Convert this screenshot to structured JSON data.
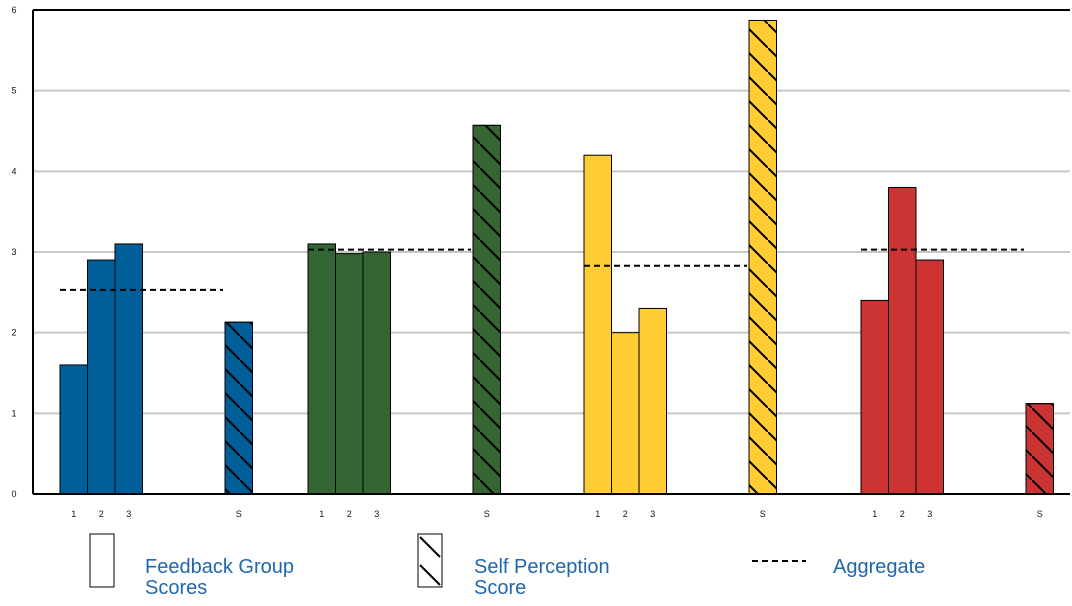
{
  "chart_data": {
    "type": "bar",
    "ylim": [
      0,
      6
    ],
    "yticks": [
      "0",
      "1",
      "2",
      "3",
      "4",
      "5",
      "6"
    ],
    "grid": true,
    "legend_position": "bottom",
    "groups": [
      {
        "color": "#005f99",
        "bars": [
          {
            "label": "1",
            "value": 1.6,
            "kind": "feedback"
          },
          {
            "label": "2",
            "value": 2.9,
            "kind": "feedback"
          },
          {
            "label": "3",
            "value": 3.1,
            "kind": "feedback"
          },
          {
            "label": "S",
            "value": 2.13,
            "kind": "self"
          }
        ],
        "aggregate": 2.53
      },
      {
        "color": "#336633",
        "bars": [
          {
            "label": "1",
            "value": 3.1,
            "kind": "feedback"
          },
          {
            "label": "2",
            "value": 2.98,
            "kind": "feedback"
          },
          {
            "label": "3",
            "value": 3.0,
            "kind": "feedback"
          },
          {
            "label": "S",
            "value": 4.57,
            "kind": "self"
          }
        ],
        "aggregate": 3.03
      },
      {
        "color": "#ffcc33",
        "bars": [
          {
            "label": "1",
            "value": 4.2,
            "kind": "feedback"
          },
          {
            "label": "2",
            "value": 2.0,
            "kind": "feedback"
          },
          {
            "label": "3",
            "value": 2.3,
            "kind": "feedback"
          },
          {
            "label": "S",
            "value": 5.87,
            "kind": "self"
          }
        ],
        "aggregate": 2.83
      },
      {
        "color": "#cc3333",
        "bars": [
          {
            "label": "1",
            "value": 2.4,
            "kind": "feedback"
          },
          {
            "label": "2",
            "value": 3.8,
            "kind": "feedback"
          },
          {
            "label": "3",
            "value": 2.9,
            "kind": "feedback"
          },
          {
            "label": "S",
            "value": 1.12,
            "kind": "self"
          }
        ],
        "aggregate": 3.03
      }
    ]
  },
  "legend": {
    "feedback": "Feedback Group Scores",
    "self": "Self Perception Score",
    "aggregate": "Aggregate"
  },
  "colors": {
    "grid": "#c8c8c8",
    "axis": "#000000",
    "legend_text": "#1f66b0"
  }
}
